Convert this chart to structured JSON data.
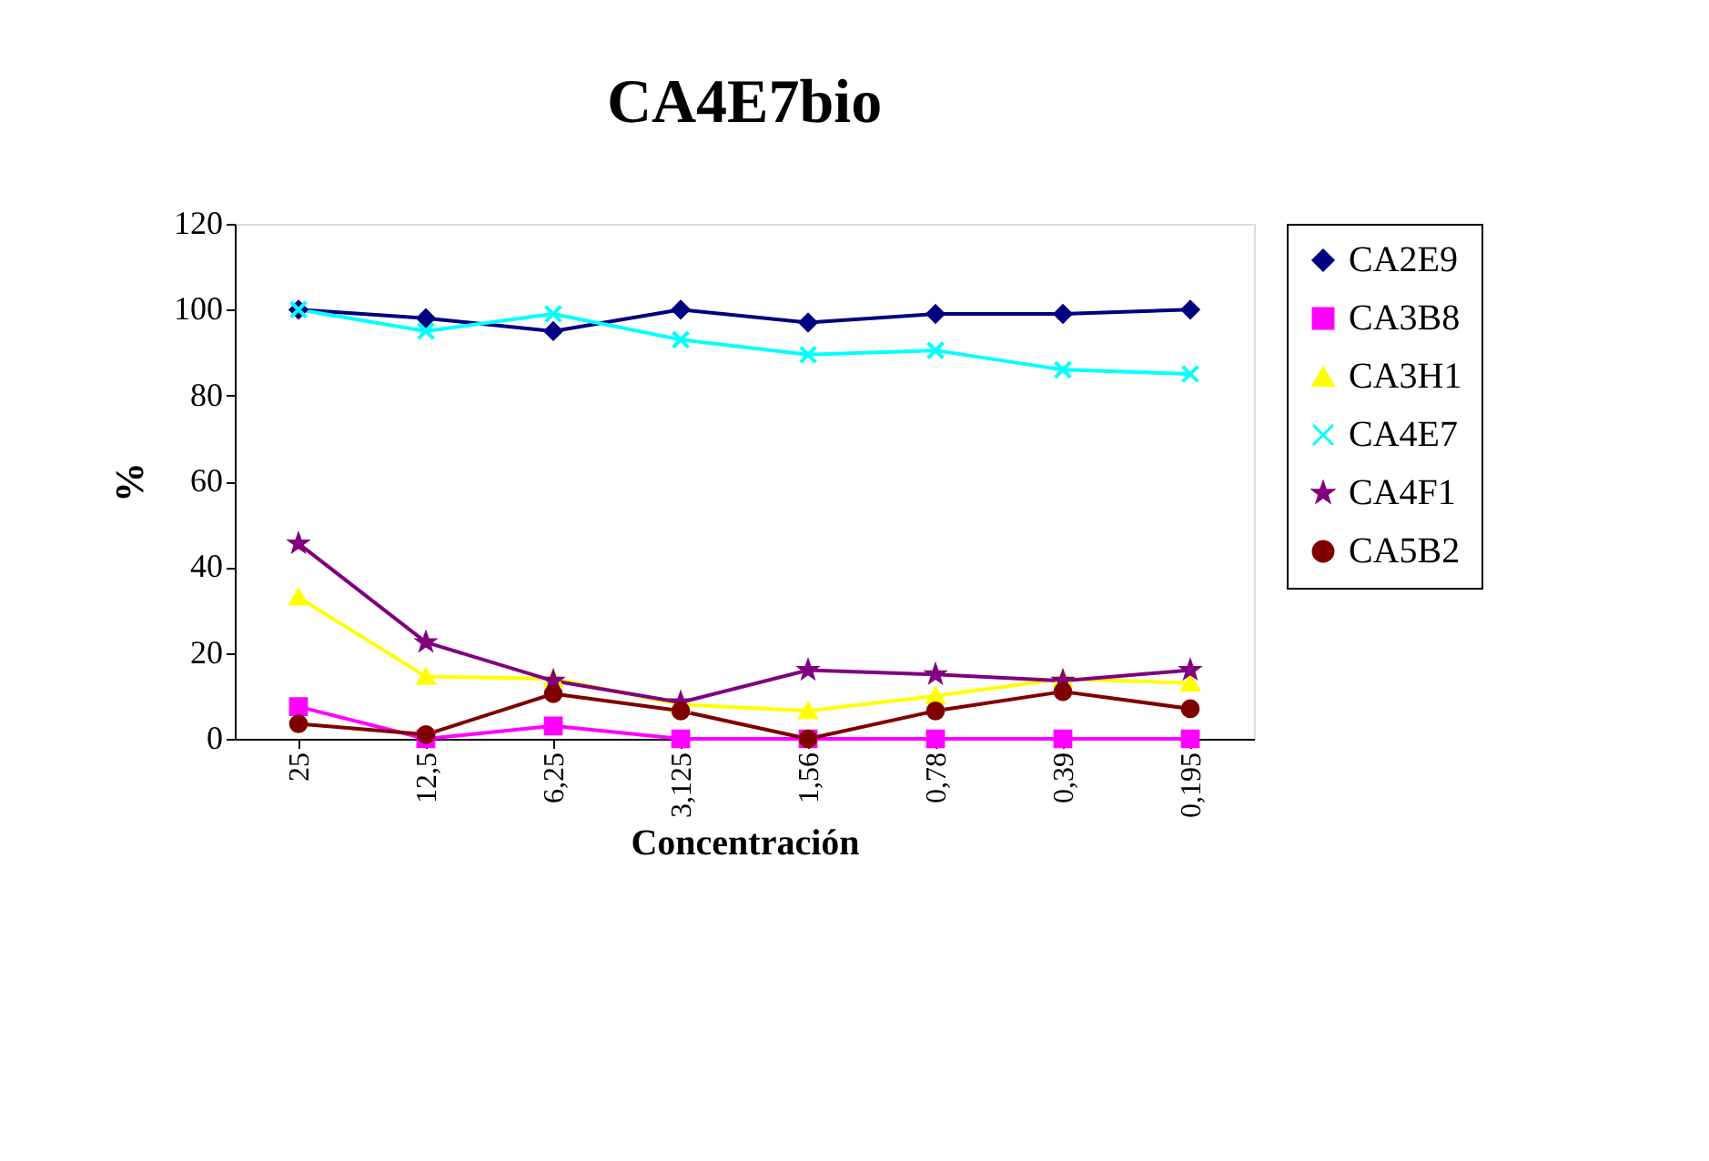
{
  "chart_data": {
    "type": "line",
    "title": "CA4E7bio",
    "xlabel": "Concentración",
    "ylabel": "%",
    "categories": [
      "25",
      "12,5",
      "6,25",
      "3,125",
      "1,56",
      "0,78",
      "0,39",
      "0,195"
    ],
    "ylim": [
      0,
      120
    ],
    "yticks": [
      0,
      20,
      40,
      60,
      80,
      100,
      120
    ],
    "grid": false,
    "legend": "right",
    "series": [
      {
        "name": "CA2E9",
        "color": "#000080",
        "marker": "diamond",
        "values": [
          100,
          98,
          95,
          100,
          97,
          99,
          99,
          100
        ]
      },
      {
        "name": "CA3B8",
        "color": "#ff00ff",
        "marker": "square",
        "values": [
          7.5,
          0,
          3,
          0,
          0,
          0,
          0,
          0
        ]
      },
      {
        "name": "CA3H1",
        "color": "#ffff00",
        "marker": "triangle",
        "values": [
          33,
          14.5,
          14,
          8,
          6.5,
          10,
          14,
          13
        ]
      },
      {
        "name": "CA4E7",
        "color": "#00ffff",
        "marker": "cross",
        "values": [
          100,
          95,
          99,
          93,
          89.5,
          90.5,
          86,
          85
        ]
      },
      {
        "name": "CA4F1",
        "color": "#800080",
        "marker": "star",
        "values": [
          45.5,
          22.5,
          13.5,
          8.5,
          16,
          15,
          13.5,
          16
        ]
      },
      {
        "name": "CA5B2",
        "color": "#800000",
        "marker": "circle",
        "values": [
          3.5,
          1,
          10.5,
          6.5,
          0,
          6.5,
          11,
          7
        ]
      }
    ]
  }
}
